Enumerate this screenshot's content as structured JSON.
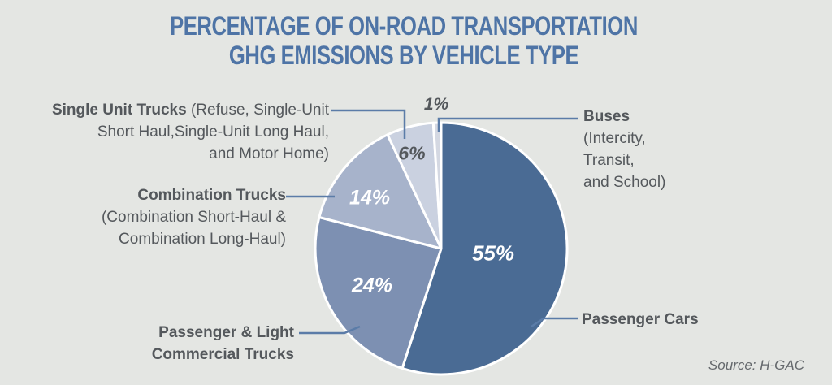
{
  "title": {
    "line1": "PERCENTAGE OF ON-ROAD TRANSPORTATION",
    "line2": "GHG EMISSIONS BY VEHICLE TYPE"
  },
  "chart_data": {
    "type": "pie",
    "title": "PERCENTAGE OF ON-ROAD TRANSPORTATION GHG EMISSIONS BY VEHICLE TYPE",
    "start_angle_deg": 0,
    "direction": "clockwise",
    "legend": "callout labels with leader lines",
    "slices": [
      {
        "id": "passenger-cars",
        "label": "Passenger Cars",
        "value": 55,
        "percent_label": "55%",
        "color": "#4A6B94"
      },
      {
        "id": "passenger-light-commercial-trucks",
        "label": "Passenger & Light Commercial Trucks",
        "value": 24,
        "percent_label": "24%",
        "color": "#7D90B2"
      },
      {
        "id": "combination-trucks",
        "label": "Combination Trucks (Combination Short-Haul & Combination Long-Haul)",
        "value": 14,
        "percent_label": "14%",
        "color": "#A7B3CB"
      },
      {
        "id": "single-unit-trucks",
        "label": "Single Unit Trucks (Refuse, Single-Unit Short Haul,Single-Unit Long Haul, and Motor Home)",
        "value": 6,
        "percent_label": "6%",
        "color": "#CAD1E0"
      },
      {
        "id": "buses",
        "label": "Buses (Intercity, Transit, and School)",
        "value": 1,
        "percent_label": "1%",
        "color": "#D4D8E2"
      }
    ],
    "source": "Source: H-GAC"
  },
  "labels": {
    "single_unit": {
      "name": "Single Unit Trucks",
      "rest1": " (Refuse, Single-Unit",
      "line2": "Short Haul,Single-Unit Long Haul,",
      "line3": "and Motor Home)"
    },
    "combination": {
      "name": "Combination Trucks",
      "line2": "(Combination Short-Haul &",
      "line3": "Combination Long-Haul)"
    },
    "passenger_light": {
      "line1": "Passenger & Light",
      "line2": "Commercial Trucks"
    },
    "buses": {
      "name": "Buses",
      "line2": "(Intercity,",
      "line3": "Transit,",
      "line4": "and School)"
    },
    "passenger_cars": "Passenger Cars",
    "source": "Source: H-GAC"
  },
  "colors": {
    "background": "#E4E6E3",
    "title_text": "#4E74A6",
    "label_text": "#54585C",
    "leader_line": "#5B7CA8",
    "percent_on_dark_slices": "#FFFFFF",
    "slice_separator": "#FFFFFF",
    "source_text": "#65696D"
  }
}
